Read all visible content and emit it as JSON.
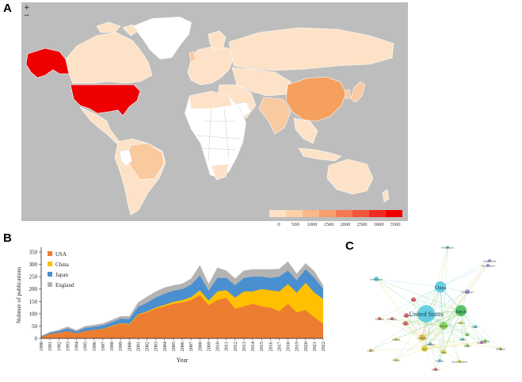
{
  "panels": {
    "a": "A",
    "b": "B",
    "c": "C"
  },
  "map": {
    "zoom_in": "+",
    "zoom_out": "−",
    "legend_ticks": [
      "0",
      "500",
      "1000",
      "1500",
      "2000",
      "2500",
      "3000",
      "3500"
    ],
    "legend_colors": [
      "#fde0c5",
      "#fcd0a8",
      "#f8b88b",
      "#f59e6e",
      "#f47a53",
      "#f2553b",
      "#f02a24",
      "#ee0000"
    ],
    "colors": {
      "ocean": "#bdbdbd",
      "usa": "#ee0000",
      "china": "#f5a05f",
      "low": "#fde2c7",
      "mid": "#f9c9a0",
      "none": "#ffffff"
    }
  },
  "chart_data": {
    "type": "area",
    "x": [
      1990,
      1991,
      1992,
      1993,
      1994,
      1995,
      1996,
      1997,
      1998,
      1999,
      2000,
      2001,
      2002,
      2003,
      2004,
      2005,
      2006,
      2007,
      2008,
      2009,
      2010,
      2011,
      2012,
      2013,
      2014,
      2015,
      2016,
      2017,
      2018,
      2019,
      2020,
      2021,
      2022
    ],
    "x_tick_labels": [
      "1990",
      "1991",
      "1992",
      "1993",
      "1994",
      "1995",
      "1996",
      "1997",
      "1998",
      "1999",
      "2000",
      "2001",
      "2002",
      "2003",
      "2004",
      "2005",
      "2006",
      "2007",
      "2008",
      "2009",
      "2010",
      "2011",
      "2012",
      "2013",
      "2014",
      "2015",
      "2016",
      "2017",
      "2018",
      "2019",
      "2020",
      "2021",
      "2022"
    ],
    "stacking": "stacked",
    "series": [
      {
        "name": "USA",
        "color": "#ed7d31",
        "values": [
          5,
          18,
          22,
          30,
          20,
          30,
          35,
          38,
          48,
          60,
          55,
          95,
          105,
          120,
          130,
          140,
          145,
          155,
          175,
          135,
          155,
          165,
          120,
          130,
          140,
          130,
          125,
          110,
          140,
          105,
          115,
          85,
          60
        ]
      },
      {
        "name": "China",
        "color": "#ffc000",
        "values": [
          0,
          0,
          0,
          0,
          0,
          0,
          0,
          1,
          2,
          2,
          3,
          3,
          4,
          5,
          6,
          8,
          10,
          12,
          20,
          18,
          35,
          30,
          45,
          60,
          50,
          70,
          70,
          80,
          80,
          80,
          110,
          100,
          100
        ]
      },
      {
        "name": "Japan",
        "color": "#4a90d0",
        "values": [
          3,
          5,
          8,
          10,
          8,
          12,
          12,
          14,
          15,
          18,
          20,
          30,
          35,
          40,
          45,
          45,
          45,
          50,
          60,
          40,
          55,
          50,
          50,
          55,
          60,
          50,
          50,
          60,
          55,
          50,
          55,
          60,
          40
        ]
      },
      {
        "name": "England",
        "color": "#b3b3b3",
        "values": [
          2,
          3,
          5,
          8,
          6,
          8,
          8,
          8,
          10,
          10,
          12,
          18,
          25,
          25,
          25,
          22,
          22,
          25,
          42,
          28,
          42,
          30,
          28,
          30,
          30,
          30,
          35,
          32,
          37,
          27,
          25,
          27,
          15
        ]
      }
    ],
    "xlabel": "Year",
    "ylabel": "Nubmer of publications",
    "yticks": [
      0,
      50,
      100,
      150,
      200,
      250,
      300,
      350
    ],
    "ylim": [
      0,
      350
    ],
    "legend_position": "top-left",
    "grid": false
  },
  "network": {
    "nodes": [
      {
        "label": "United States",
        "color": "#4fc8dc",
        "r": 11,
        "big": true
      },
      {
        "label": "China",
        "color": "#4fc8dc",
        "r": 7,
        "big": true
      },
      {
        "label": "Japan",
        "color": "#3fb84b",
        "r": 7,
        "big": true
      },
      {
        "label": "England",
        "color": "#7fcf4a",
        "r": 5,
        "big": false
      },
      {
        "label": "South Korea",
        "color": "#4fc8dc",
        "r": 3,
        "big": false
      },
      {
        "label": "Germany",
        "color": "#d9b13a",
        "r": 4,
        "big": false
      },
      {
        "label": "Italy",
        "color": "#d9cf3a",
        "r": 4,
        "big": false
      },
      {
        "label": "India",
        "color": "#e05a5a",
        "r": 3,
        "big": false
      },
      {
        "label": "Canada",
        "color": "#e05a5a",
        "r": 3,
        "big": false
      },
      {
        "label": "France",
        "color": "#e05a5a",
        "r": 3,
        "big": false
      },
      {
        "label": "Switzerland",
        "color": "#a07ad0",
        "r": 3,
        "big": false
      },
      {
        "label": "Spain",
        "color": "#d9cf3a",
        "r": 3,
        "big": false
      },
      {
        "label": "Australia",
        "color": "#c070c0",
        "r": 2,
        "big": false
      },
      {
        "label": "Netherlands",
        "color": "#5fb4d8",
        "r": 2,
        "big": false
      },
      {
        "label": "Sweden",
        "color": "#d9cf3a",
        "r": 2,
        "big": false
      },
      {
        "label": "Belgium",
        "color": "#9acd32",
        "r": 2,
        "big": false
      },
      {
        "label": "Brazil",
        "color": "#4fc8dc",
        "r": 2,
        "big": false
      },
      {
        "label": "Egypt",
        "color": "#4fc8dc",
        "r": 2,
        "big": false
      },
      {
        "label": "Poland",
        "color": "#d9cf3a",
        "r": 2,
        "big": false
      },
      {
        "label": "Austria",
        "color": "#d9cf3a",
        "r": 2,
        "big": false
      },
      {
        "label": "Greece",
        "color": "#d9b13a",
        "r": 2,
        "big": false
      },
      {
        "label": "Denmark",
        "color": "#e05a5a",
        "r": 2,
        "big": false
      },
      {
        "label": "Scotland",
        "color": "#5fb4d8",
        "r": 2,
        "big": false
      },
      {
        "label": "Portugal",
        "color": "#e05a5a",
        "r": 2,
        "big": false
      },
      {
        "label": "Iran",
        "color": "#7fcf4a",
        "r": 2,
        "big": false
      },
      {
        "label": "Saudi Arabia",
        "color": "#a07ad0",
        "r": 2,
        "big": false
      },
      {
        "label": "Turkey",
        "color": "#7fcf4a",
        "r": 2,
        "big": false
      },
      {
        "label": "Norway",
        "color": "#5fb4d8",
        "r": 2,
        "big": false
      },
      {
        "label": "Mexico",
        "color": "#e05a5a",
        "r": 2,
        "big": false
      },
      {
        "label": "New Zealand",
        "color": "#a07ad0",
        "r": 2,
        "big": false
      },
      {
        "label": "Pakistan",
        "color": "#7fcf4a",
        "r": 2,
        "big": false
      },
      {
        "label": "Czech Republic",
        "color": "#d9cf3a",
        "r": 2,
        "big": false
      }
    ]
  }
}
